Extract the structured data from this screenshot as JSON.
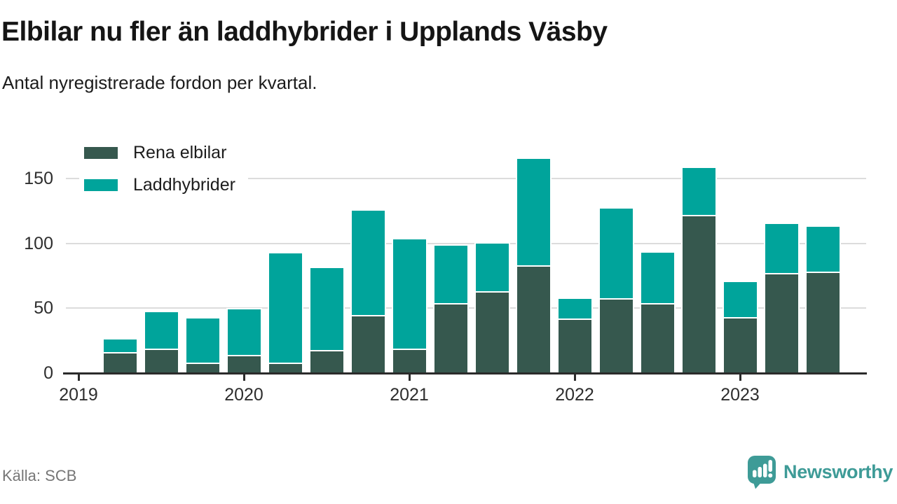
{
  "title": "Elbilar nu fler än laddhybrider i Upplands Väsby",
  "subtitle": "Antal nyregistrerade fordon per kvartal.",
  "source": "Källa: SCB",
  "branding": {
    "name": "Newsworthy",
    "icon": "newsworthy-speech-bubble-bar-chart-icon",
    "color": "#3e9b97"
  },
  "colors": {
    "elbilar": "#36584e",
    "laddhybrider": "#00a49b",
    "gridline": "#dcdcdc",
    "axis": "#2b2b2b",
    "text": "#1c1c1c",
    "muted_text": "#767676"
  },
  "chart_data": {
    "type": "bar",
    "stacked": true,
    "title": "Elbilar nu fler än laddhybrider i Upplands Väsby",
    "subtitle": "Antal nyregistrerade fordon per kvartal.",
    "xlabel": "",
    "ylabel": "",
    "x": [
      "2019 Q2",
      "2019 Q3",
      "2019 Q4",
      "2020 Q1",
      "2020 Q2",
      "2020 Q3",
      "2020 Q4",
      "2021 Q1",
      "2021 Q2",
      "2021 Q3",
      "2021 Q4",
      "2022 Q1",
      "2022 Q2",
      "2022 Q3",
      "2022 Q4",
      "2023 Q1",
      "2023 Q2",
      "2023 Q3"
    ],
    "series": [
      {
        "name": "Rena elbilar",
        "color": "#36584e",
        "values": [
          16,
          19,
          8,
          14,
          8,
          18,
          45,
          19,
          54,
          63,
          83,
          42,
          58,
          54,
          122,
          43,
          77,
          78
        ]
      },
      {
        "name": "Laddhybrider",
        "color": "#00a49b",
        "values": [
          10,
          28,
          34,
          35,
          84,
          63,
          80,
          84,
          44,
          37,
          82,
          15,
          69,
          39,
          36,
          27,
          38,
          35
        ]
      }
    ],
    "totals": [
      26,
      47,
      42,
      49,
      92,
      81,
      125,
      103,
      98,
      100,
      165,
      57,
      127,
      93,
      158,
      70,
      115,
      113
    ],
    "legend": [
      "Rena elbilar",
      "Laddhybrider"
    ],
    "legend_position": "top-left",
    "y_ticks": [
      "0",
      "50",
      "100",
      "150"
    ],
    "y_tick_values": [
      0,
      50,
      100,
      150
    ],
    "x_ticks": [
      "2019",
      "2020",
      "2021",
      "2022",
      "2023"
    ],
    "ylim": [
      0,
      170
    ],
    "grid": "horizontal"
  }
}
